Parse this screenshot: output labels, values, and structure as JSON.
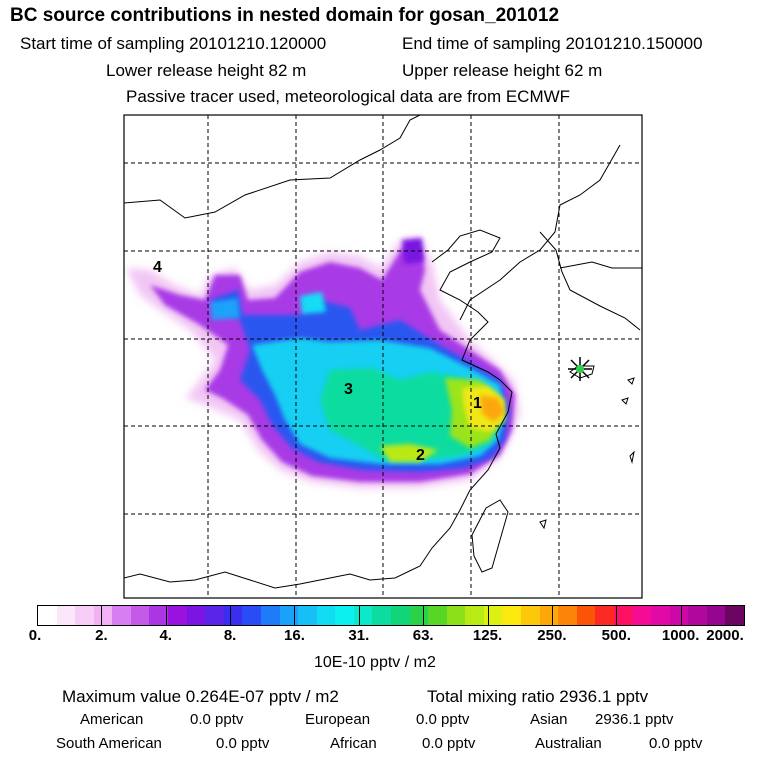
{
  "header": {
    "title": "BC  source contributions in nested domain for gosan_201012",
    "start_label": "Start time of sampling 20101210.120000",
    "end_label": "End time of sampling 20101210.150000",
    "lower_label": "Lower release height   82 m",
    "upper_label": "Upper release height   62 m",
    "note": "Passive tracer used, meteorological data are from ECMWF"
  },
  "map": {
    "region_labels": [
      "1",
      "2",
      "3",
      "4"
    ],
    "receptor_marker": "receptor-star-icon"
  },
  "colorbar": {
    "colors": [
      "#ffffff",
      "#fbe6fb",
      "#f6cdf7",
      "#f0b2f4",
      "#d77ef0",
      "#c45be8",
      "#ad36e4",
      "#9a12e0",
      "#7a15e2",
      "#5a25e8",
      "#3c2ef0",
      "#2a4cf6",
      "#1e7cf8",
      "#1aa2f8",
      "#16c0f6",
      "#12dcf4",
      "#0cf0f0",
      "#0ce8c8",
      "#0cdca0",
      "#12d478",
      "#2ad24a",
      "#58d626",
      "#8ce01a",
      "#b8ea16",
      "#dcf014",
      "#fae80e",
      "#fcc80a",
      "#fca808",
      "#fc8406",
      "#fc5406",
      "#fc2a22",
      "#fc1064",
      "#f40c96",
      "#e20aa6",
      "#cc08a8",
      "#b0089c",
      "#940690",
      "#6c0462"
    ],
    "ticks": [
      "0.",
      "2.",
      "4.",
      "8.",
      "16.",
      "31.",
      "63.",
      "125.",
      "250.",
      "500.",
      "1000.",
      "2000."
    ],
    "unit": "10E-10 pptv / m2"
  },
  "summary": {
    "max_value": "Maximum value  0.264E-07 pptv / m2",
    "total": "Total mixing ratio     2936.1 pptv",
    "american_label": "American",
    "american_val": "0.0 pptv",
    "european_label": "European",
    "european_val": "0.0 pptv",
    "asian_label": "Asian",
    "asian_val": "2936.1 pptv",
    "south_american_label": "South American",
    "south_american_val": "0.0 pptv",
    "african_label": "African",
    "african_val": "0.0 pptv",
    "australian_label": "Australian",
    "australian_val": "0.0 pptv"
  }
}
